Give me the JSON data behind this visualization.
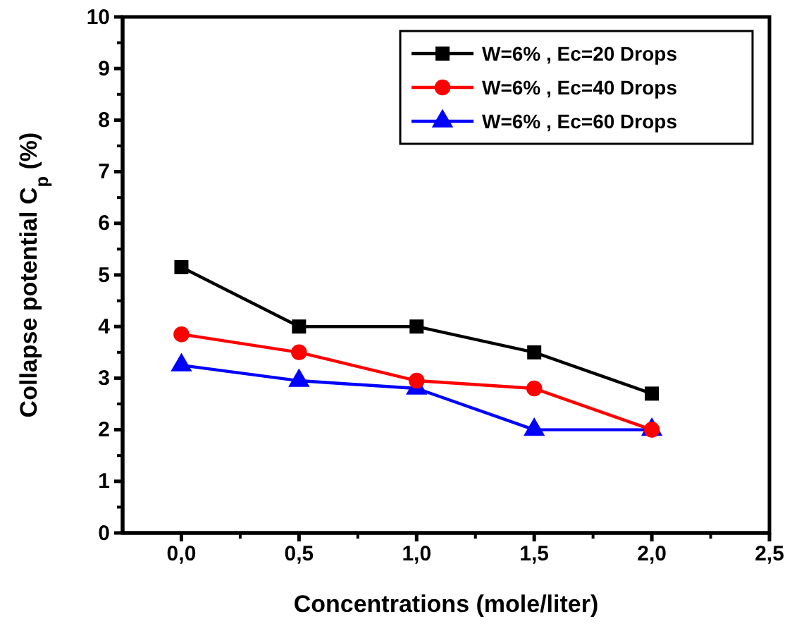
{
  "chart_data": {
    "type": "line",
    "xlabel": "Concentrations (mole/liter)",
    "ylabel": "Collapse potential C$_{p}$ (%)",
    "x": [
      0,
      0.5,
      1,
      1.5,
      2
    ],
    "xlim": [
      -0.25,
      2.5
    ],
    "xticks": [
      {
        "value": 0,
        "label": "0,0"
      },
      {
        "value": 0.5,
        "label": "0,5"
      },
      {
        "value": 1,
        "label": "1,0"
      },
      {
        "value": 1.5,
        "label": "1,5"
      },
      {
        "value": 2,
        "label": "2,0"
      },
      {
        "value": 2.5,
        "label": "2,5"
      }
    ],
    "ylim": [
      0,
      10
    ],
    "yticks": [
      0,
      1,
      2,
      3,
      4,
      5,
      6,
      7,
      8,
      9,
      10
    ],
    "legend": "top right",
    "grid": false,
    "line_style": "solid",
    "series": [
      {
        "name": "W=6% , Ec=20 Drops",
        "color": "#000000",
        "marker": "square",
        "values": [
          5.15,
          4.0,
          4.0,
          3.5,
          2.7
        ]
      },
      {
        "name": "W=6% , Ec=40 Drops",
        "color": "#ff0000",
        "marker": "circle",
        "values": [
          3.85,
          3.5,
          2.95,
          2.8,
          2.0
        ]
      },
      {
        "name": "W=6% , Ec=60 Drops",
        "color": "#0000ff",
        "marker": "triangle",
        "values": [
          3.25,
          2.95,
          2.8,
          2.0,
          2.0
        ]
      }
    ]
  }
}
